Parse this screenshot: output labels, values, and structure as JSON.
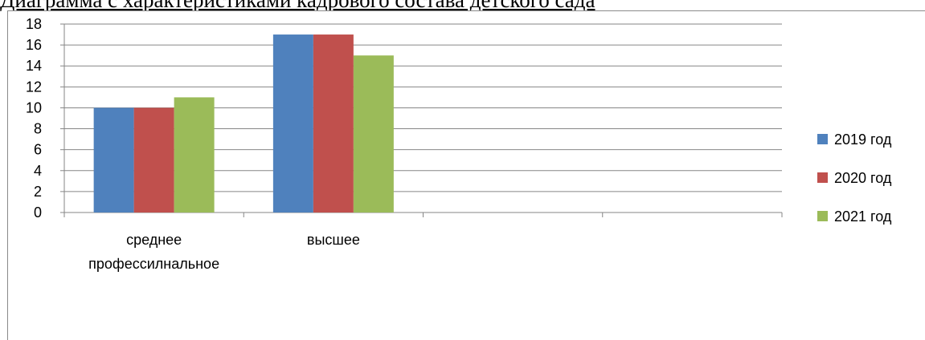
{
  "page": {
    "title": "Диаграмма с характеристиками кадрового состава детского сада"
  },
  "chart_data": {
    "type": "bar",
    "title": "",
    "xlabel": "",
    "ylabel": "",
    "categories": [
      "среднее профессилнальное",
      "высшее",
      "",
      ""
    ],
    "category_lines": [
      [
        "среднее",
        "профессилнальное"
      ],
      [
        "высшее"
      ],
      [],
      []
    ],
    "series": [
      {
        "name": "2019 год",
        "color": "#4F81BD",
        "values": [
          10,
          17,
          null,
          null
        ]
      },
      {
        "name": "2020 год",
        "color": "#C0504D",
        "values": [
          10,
          17,
          null,
          null
        ]
      },
      {
        "name": "2021 год",
        "color": "#9BBB59",
        "values": [
          11,
          15,
          null,
          null
        ]
      }
    ],
    "ylim": [
      0,
      18
    ],
    "yticks": [
      0,
      2,
      4,
      6,
      8,
      10,
      12,
      14,
      16,
      18
    ],
    "grid": true,
    "legend": "right"
  }
}
